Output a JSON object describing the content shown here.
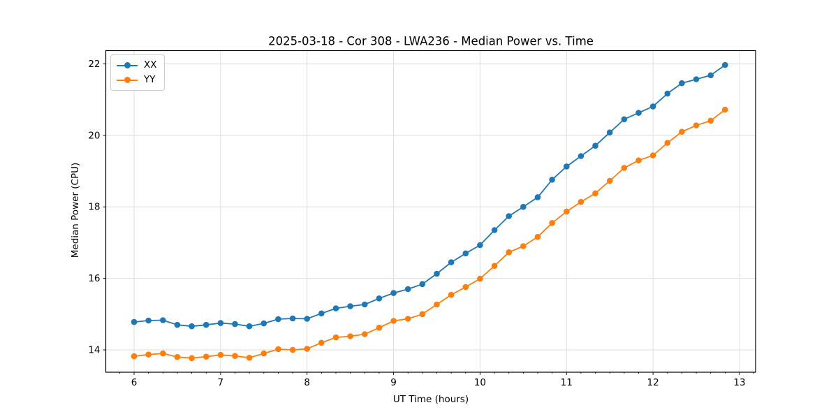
{
  "chart_data": {
    "type": "line",
    "title": "2025-03-18 - Cor 308 - LWA236 - Median Power vs. Time",
    "xlabel": "UT Time (hours)",
    "ylabel": "Median Power (CPU)",
    "xlim": [
      5.673,
      13.186
    ],
    "ylim": [
      13.375,
      22.37
    ],
    "xticks": [
      6,
      7,
      8,
      9,
      10,
      11,
      12,
      13
    ],
    "yticks": [
      14,
      16,
      18,
      20,
      22
    ],
    "minor_x_step": 0.16667,
    "grid": true,
    "grid_color": "#dedede",
    "legend_position": "upper left",
    "x": [
      6.0,
      6.1667,
      6.3333,
      6.5,
      6.6667,
      6.8333,
      7.0,
      7.1667,
      7.3333,
      7.5,
      7.6667,
      7.8333,
      8.0,
      8.1667,
      8.3333,
      8.5,
      8.6667,
      8.8333,
      9.0,
      9.1667,
      9.3333,
      9.5,
      9.6667,
      9.8333,
      10.0,
      10.1667,
      10.3333,
      10.5,
      10.6667,
      10.8333,
      11.0,
      11.1667,
      11.3333,
      11.5,
      11.6667,
      11.8333,
      12.0,
      12.1667,
      12.3333,
      12.5,
      12.6667,
      12.8333
    ],
    "series": [
      {
        "name": "XX",
        "color": "#1f77b4",
        "values": [
          14.78,
          14.82,
          14.83,
          14.7,
          14.66,
          14.7,
          14.75,
          14.72,
          14.66,
          14.74,
          14.86,
          14.88,
          14.87,
          15.02,
          15.16,
          15.22,
          15.27,
          15.44,
          15.59,
          15.7,
          15.84,
          16.13,
          16.45,
          16.7,
          16.93,
          17.35,
          17.74,
          18.0,
          18.27,
          18.76,
          19.13,
          19.42,
          19.71,
          20.08,
          20.45,
          20.63,
          20.81,
          21.17,
          21.46,
          21.57,
          21.68,
          21.97
        ]
      },
      {
        "name": "YY",
        "color": "#ff7f0e",
        "values": [
          13.82,
          13.87,
          13.9,
          13.8,
          13.77,
          13.81,
          13.86,
          13.83,
          13.78,
          13.9,
          14.02,
          14.0,
          14.03,
          14.2,
          14.35,
          14.38,
          14.44,
          14.62,
          14.81,
          14.87,
          15.0,
          15.27,
          15.54,
          15.76,
          15.99,
          16.35,
          16.73,
          16.9,
          17.16,
          17.55,
          17.87,
          18.14,
          18.38,
          18.73,
          19.09,
          19.3,
          19.44,
          19.79,
          20.1,
          20.28,
          20.41,
          20.72
        ]
      }
    ]
  }
}
